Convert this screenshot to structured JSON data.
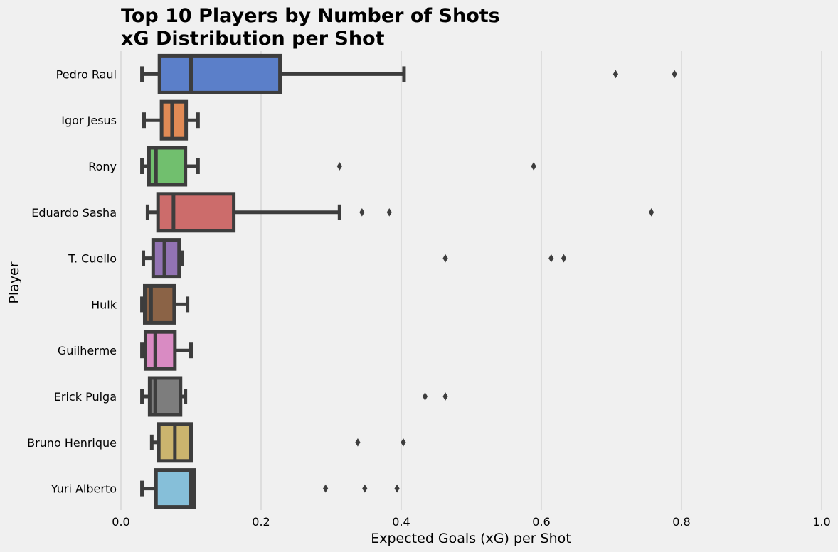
{
  "chart_data": {
    "type": "boxplot",
    "orientation": "horizontal",
    "title": "Top 10 Players by Number of Shots",
    "subtitle": "xG Distribution per Shot",
    "xlabel": "Expected Goals (xG) per Shot",
    "ylabel": "Player",
    "xlim": [
      0.0,
      1.0
    ],
    "xticks": [
      "0.0",
      "0.2",
      "0.4",
      "0.6",
      "0.8",
      "1.0"
    ],
    "grid": "vertical",
    "style": {
      "background": "#f0f0f0",
      "grid_color": "#d0d0d0",
      "box_edge": "#3d3d3d"
    },
    "series": [
      {
        "name": "Pedro Raul",
        "color": "#5b7fc9",
        "whisker_low": 0.03,
        "q1": 0.055,
        "median": 0.1,
        "q3": 0.227,
        "whisker_high": 0.404,
        "outliers": [
          0.706,
          0.79
        ]
      },
      {
        "name": "Igor Jesus",
        "color": "#e08a55",
        "whisker_low": 0.033,
        "q1": 0.058,
        "median": 0.073,
        "q3": 0.093,
        "whisker_high": 0.11,
        "outliers": []
      },
      {
        "name": "Rony",
        "color": "#71bf6e",
        "whisker_low": 0.03,
        "q1": 0.04,
        "median": 0.05,
        "q3": 0.092,
        "whisker_high": 0.11,
        "outliers": [
          0.312,
          0.589
        ]
      },
      {
        "name": "Eduardo Sasha",
        "color": "#cc6c6b",
        "whisker_low": 0.038,
        "q1": 0.053,
        "median": 0.075,
        "q3": 0.161,
        "whisker_high": 0.312,
        "outliers": [
          0.344,
          0.383,
          0.757
        ]
      },
      {
        "name": "T. Cuello",
        "color": "#9273b3",
        "whisker_low": 0.032,
        "q1": 0.046,
        "median": 0.062,
        "q3": 0.083,
        "whisker_high": 0.087,
        "outliers": [
          0.463,
          0.614,
          0.632
        ]
      },
      {
        "name": "Hulk",
        "color": "#8b6346",
        "whisker_low": 0.03,
        "q1": 0.034,
        "median": 0.043,
        "q3": 0.076,
        "whisker_high": 0.095,
        "outliers": []
      },
      {
        "name": "Guilherme",
        "color": "#d98bc3",
        "whisker_low": 0.03,
        "q1": 0.035,
        "median": 0.049,
        "q3": 0.077,
        "whisker_high": 0.1,
        "outliers": []
      },
      {
        "name": "Erick Pulga",
        "color": "#7d7d7d",
        "whisker_low": 0.03,
        "q1": 0.041,
        "median": 0.049,
        "q3": 0.085,
        "whisker_high": 0.092,
        "outliers": [
          0.434,
          0.463
        ]
      },
      {
        "name": "Bruno Henrique",
        "color": "#cbb46e",
        "whisker_low": 0.044,
        "q1": 0.054,
        "median": 0.077,
        "q3": 0.1,
        "whisker_high": 0.101,
        "outliers": [
          0.338,
          0.403
        ]
      },
      {
        "name": "Yuri Alberto",
        "color": "#86bfd9",
        "whisker_low": 0.03,
        "q1": 0.05,
        "median": 0.1,
        "q3": 0.105,
        "whisker_high": 0.105,
        "outliers": [
          0.292,
          0.348,
          0.394
        ]
      }
    ]
  }
}
